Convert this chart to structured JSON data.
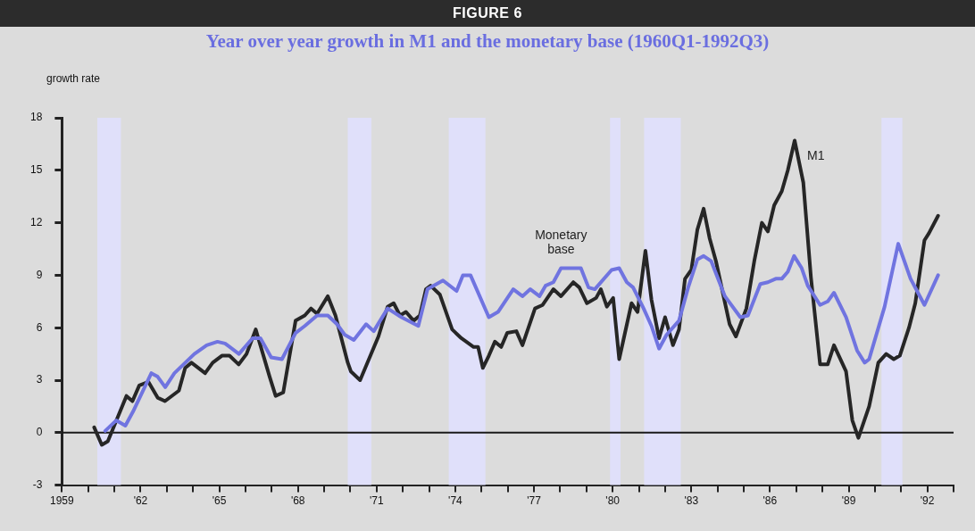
{
  "chart_data": {
    "type": "line",
    "title": "FIGURE 6",
    "subtitle": "Year over year growth in M1 and the monetary base (1960Q1-1992Q3)",
    "ylabel": "growth rate",
    "xlim": [
      1959,
      1993
    ],
    "xticks": [
      1959,
      {
        "value": 1960,
        "label": null
      },
      {
        "value": 1961,
        "label": null
      },
      {
        "value": 1962,
        "label": "'62"
      },
      {
        "value": 1963,
        "label": null
      },
      {
        "value": 1964,
        "label": null
      },
      {
        "value": 1965,
        "label": "'65"
      },
      {
        "value": 1966,
        "label": null
      },
      {
        "value": 1967,
        "label": null
      },
      {
        "value": 1968,
        "label": "'68"
      },
      {
        "value": 1969,
        "label": null
      },
      {
        "value": 1970,
        "label": null
      },
      {
        "value": 1971,
        "label": "'71"
      },
      {
        "value": 1972,
        "label": null
      },
      {
        "value": 1973,
        "label": null
      },
      {
        "value": 1974,
        "label": "'74"
      },
      {
        "value": 1975,
        "label": null
      },
      {
        "value": 1976,
        "label": null
      },
      {
        "value": 1977,
        "label": "'77"
      },
      {
        "value": 1978,
        "label": null
      },
      {
        "value": 1979,
        "label": null
      },
      {
        "value": 1980,
        "label": "'80"
      },
      {
        "value": 1981,
        "label": null
      },
      {
        "value": 1982,
        "label": null
      },
      {
        "value": 1983,
        "label": "'83"
      },
      {
        "value": 1984,
        "label": null
      },
      {
        "value": 1985,
        "label": null
      },
      {
        "value": 1986,
        "label": "'86"
      },
      {
        "value": 1987,
        "label": null
      },
      {
        "value": 1988,
        "label": null
      },
      {
        "value": 1989,
        "label": "'89"
      },
      {
        "value": 1990,
        "label": null
      },
      {
        "value": 1991,
        "label": null
      },
      {
        "value": 1992,
        "label": "'92"
      },
      {
        "value": 1993,
        "label": null
      }
    ],
    "ylim": [
      -3,
      18
    ],
    "yticks": [
      -3,
      0,
      3,
      6,
      9,
      12,
      15,
      18
    ],
    "grid": false,
    "legend": false,
    "marker": "none",
    "line_style": "solid",
    "bands": [
      {
        "axis": "x",
        "from": 1960.35,
        "to": 1961.25,
        "color": "#e0e0fa"
      },
      {
        "axis": "x",
        "from": 1969.9,
        "to": 1970.8,
        "color": "#e0e0fa"
      },
      {
        "axis": "x",
        "from": 1973.75,
        "to": 1975.15,
        "color": "#e0e0fa"
      },
      {
        "axis": "x",
        "from": 1979.9,
        "to": 1980.3,
        "color": "#e0e0fa"
      },
      {
        "axis": "x",
        "from": 1981.2,
        "to": 1982.6,
        "color": "#e0e0fa"
      },
      {
        "axis": "x",
        "from": 1990.25,
        "to": 1991.05,
        "color": "#e0e0fa"
      }
    ],
    "ref_lines": [
      {
        "axis": "y",
        "value": 0,
        "color": "#1a1a1a"
      }
    ],
    "annotations": [
      {
        "text": "M1",
        "x": 1986.94,
        "y": 16.7
      },
      {
        "text": "Monetary base",
        "x": 1978.03,
        "y": 9.4
      }
    ],
    "series": [
      {
        "color": "#7074e0",
        "x": [
          1960.65,
          1961.07,
          1961.42,
          1961.71,
          1962.41,
          1962.65,
          1962.94,
          1963.29,
          1964.05,
          1964.52,
          1964.93,
          1965.22,
          1965.75,
          1966.27,
          1966.57,
          1966.98,
          1967.39,
          1967.91,
          1968.26,
          1968.73,
          1969.14,
          1969.49,
          1969.78,
          1970.13,
          1970.6,
          1970.89,
          1971.42,
          1971.95,
          1972.59,
          1972.94,
          1973.53,
          1974.05,
          1974.29,
          1974.58,
          1975.28,
          1975.63,
          1976.21,
          1976.56,
          1976.86,
          1977.21,
          1977.44,
          1977.74,
          1978.03,
          1978.79,
          1979.08,
          1979.32,
          1979.96,
          1980.25,
          1980.54,
          1980.78,
          1981.18,
          1981.48,
          1981.77,
          1982.06,
          1982.53,
          1982.88,
          1983.23,
          1983.47,
          1983.76,
          1984.28,
          1984.87,
          1985.16,
          1985.63,
          1985.92,
          1986.22,
          1986.45,
          1986.68,
          1986.92,
          1987.21,
          1987.44,
          1987.91,
          1988.2,
          1988.44,
          1988.9,
          1989.32,
          1989.61,
          1989.78,
          1990.37,
          1990.89,
          1991.36,
          1991.89,
          1992.41
        ],
        "values": [
          0.1,
          0.7,
          0.4,
          1.2,
          3.4,
          3.2,
          2.6,
          3.4,
          4.5,
          5.0,
          5.2,
          5.1,
          4.5,
          5.4,
          5.4,
          4.3,
          4.2,
          5.7,
          6.1,
          6.7,
          6.7,
          6.2,
          5.6,
          5.3,
          6.2,
          5.8,
          7.1,
          6.6,
          6.1,
          8.2,
          8.7,
          8.1,
          9.0,
          9.0,
          6.6,
          6.9,
          8.2,
          7.8,
          8.2,
          7.8,
          8.4,
          8.6,
          9.4,
          9.4,
          8.3,
          8.2,
          9.3,
          9.4,
          8.6,
          8.3,
          7.1,
          6.1,
          4.8,
          5.6,
          6.4,
          8.3,
          9.9,
          10.1,
          9.8,
          7.8,
          6.6,
          6.7,
          8.5,
          8.6,
          8.8,
          8.8,
          9.2,
          10.1,
          9.4,
          8.4,
          7.3,
          7.5,
          8.0,
          6.6,
          4.7,
          4.0,
          4.2,
          7.2,
          10.8,
          8.8,
          7.3,
          9.0
        ]
      },
      {
        "color": "#262626",
        "x": [
          1960.23,
          1960.52,
          1960.75,
          1961.46,
          1961.69,
          1961.95,
          1962.3,
          1962.65,
          1962.93,
          1963.46,
          1963.7,
          1963.94,
          1964.46,
          1964.75,
          1965.1,
          1965.39,
          1965.74,
          1966.04,
          1966.39,
          1966.92,
          1967.15,
          1967.44,
          1967.91,
          1968.26,
          1968.5,
          1968.73,
          1969.14,
          1969.43,
          1969.9,
          1970.02,
          1970.37,
          1971.07,
          1971.42,
          1971.65,
          1971.89,
          1972.12,
          1972.41,
          1972.65,
          1972.88,
          1973.06,
          1973.41,
          1973.88,
          1974.23,
          1974.7,
          1974.87,
          1975.05,
          1975.28,
          1975.51,
          1975.75,
          1975.98,
          1976.33,
          1976.56,
          1977.04,
          1977.33,
          1977.74,
          1978.03,
          1978.5,
          1978.73,
          1979.02,
          1979.37,
          1979.55,
          1979.78,
          1980.02,
          1980.25,
          1980.72,
          1980.95,
          1981.25,
          1981.48,
          1981.77,
          1982.0,
          1982.3,
          1982.53,
          1982.76,
          1983.0,
          1983.23,
          1983.47,
          1983.7,
          1983.94,
          1984.46,
          1984.7,
          1985.1,
          1985.4,
          1985.69,
          1985.92,
          1986.16,
          1986.45,
          1986.68,
          1986.94,
          1987.27,
          1987.56,
          1987.91,
          1988.2,
          1988.44,
          1988.9,
          1989.14,
          1989.37,
          1989.78,
          1990.13,
          1990.43,
          1990.72,
          1990.95,
          1991.3,
          1991.54,
          1991.89,
          1992.06,
          1992.41
        ],
        "values": [
          0.3,
          -0.7,
          -0.5,
          2.1,
          1.8,
          2.7,
          2.9,
          2.0,
          1.8,
          2.4,
          3.7,
          4.0,
          3.4,
          4.0,
          4.4,
          4.4,
          3.9,
          4.5,
          5.9,
          3.2,
          2.1,
          2.3,
          6.4,
          6.7,
          7.1,
          6.8,
          7.8,
          6.7,
          4.0,
          3.5,
          3.0,
          5.5,
          7.2,
          7.4,
          6.7,
          6.9,
          6.4,
          6.7,
          8.2,
          8.4,
          7.9,
          5.9,
          5.4,
          4.9,
          4.9,
          3.7,
          4.4,
          5.2,
          4.9,
          5.7,
          5.8,
          5.0,
          7.1,
          7.3,
          8.2,
          7.8,
          8.6,
          8.3,
          7.4,
          7.7,
          8.2,
          7.2,
          7.7,
          4.2,
          7.4,
          6.9,
          10.4,
          7.6,
          5.4,
          6.6,
          5.0,
          5.9,
          8.8,
          9.3,
          11.6,
          12.8,
          11.1,
          9.8,
          6.2,
          5.5,
          7.1,
          9.8,
          12.0,
          11.5,
          13.0,
          13.8,
          15.0,
          16.7,
          14.3,
          8.9,
          3.9,
          3.9,
          5.0,
          3.5,
          0.7,
          -0.3,
          1.5,
          4.0,
          4.5,
          4.2,
          4.4,
          6.0,
          7.4,
          11.0,
          11.4,
          12.4
        ]
      }
    ]
  }
}
